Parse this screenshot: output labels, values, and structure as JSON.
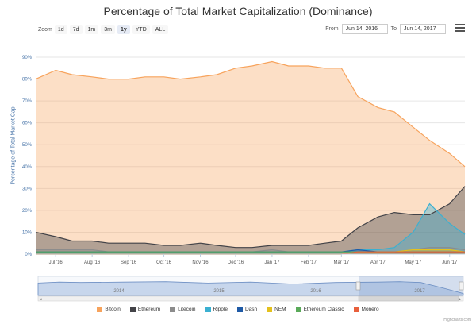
{
  "title": "Percentage of Total Market Capitalization (Dominance)",
  "zoom": {
    "label": "Zoom",
    "buttons": [
      "1d",
      "7d",
      "1m",
      "3m",
      "1y",
      "YTD",
      "ALL"
    ],
    "active": "1y"
  },
  "range": {
    "from_label": "From",
    "from_value": "Jun 14, 2016",
    "to_label": "To",
    "to_value": "Jun 14, 2017"
  },
  "menu_icon": "hamburger-menu-icon",
  "credit": "Highcharts.com",
  "chart_data": {
    "type": "area",
    "title": "Percentage of Total Market Capitalization (Dominance)",
    "ylabel": "Percentage of Total Market Cap",
    "ylim": [
      0,
      90
    ],
    "y_ticks": [
      "0%",
      "10%",
      "20%",
      "30%",
      "40%",
      "50%",
      "60%",
      "70%",
      "80%",
      "90%"
    ],
    "x_ticks": [
      "Jul '16",
      "Aug '16",
      "Sep '16",
      "Oct '16",
      "Nov '16",
      "Dec '16",
      "Jan '17",
      "Feb '17",
      "Mar '17",
      "Apr '17",
      "May '17",
      "Jun '17"
    ],
    "x": [
      "2016-06-14",
      "2016-07-01",
      "2016-07-15",
      "2016-08-01",
      "2016-08-15",
      "2016-09-01",
      "2016-09-15",
      "2016-10-01",
      "2016-10-15",
      "2016-11-01",
      "2016-11-15",
      "2016-12-01",
      "2016-12-15",
      "2017-01-01",
      "2017-01-15",
      "2017-02-01",
      "2017-02-15",
      "2017-03-01",
      "2017-03-15",
      "2017-04-01",
      "2017-04-15",
      "2017-05-01",
      "2017-05-15",
      "2017-06-01",
      "2017-06-14"
    ],
    "series": [
      {
        "name": "Bitcoin",
        "color": "#f7a35c",
        "values": [
          80,
          84,
          82,
          81,
          80,
          80,
          81,
          81,
          80,
          81,
          82,
          85,
          86,
          88,
          86,
          86,
          85,
          85,
          72,
          67,
          65,
          58,
          52,
          46,
          40
        ]
      },
      {
        "name": "Ethereum",
        "color": "#434348",
        "values": [
          10,
          8,
          6,
          6,
          5,
          5,
          5,
          4,
          4,
          5,
          4,
          3,
          3,
          4,
          4,
          4,
          5,
          6,
          12,
          17,
          19,
          18,
          18,
          23,
          31
        ]
      },
      {
        "name": "Litecoin",
        "color": "#8c8c8c",
        "values": [
          2,
          2,
          2,
          2,
          1,
          1,
          1,
          1,
          1,
          1,
          1,
          1,
          1,
          2,
          1,
          1,
          1,
          1,
          1,
          1,
          1,
          2,
          3,
          3,
          2
        ]
      },
      {
        "name": "Ripple",
        "color": "#3bb0d1",
        "values": [
          1,
          1,
          1,
          1,
          1,
          1,
          1,
          1,
          1,
          1,
          1,
          1,
          1,
          1,
          1,
          1,
          1,
          1,
          2,
          2,
          3,
          10,
          23,
          14,
          9
        ]
      },
      {
        "name": "Dash",
        "color": "#1f5aa6",
        "values": [
          1,
          1,
          1,
          1,
          1,
          1,
          1,
          1,
          1,
          1,
          1,
          1,
          1,
          1,
          1,
          1,
          1,
          1,
          2,
          1,
          1,
          1,
          1,
          1,
          1
        ]
      },
      {
        "name": "NEM",
        "color": "#e4c11d",
        "values": [
          0,
          0,
          0,
          0,
          0,
          0,
          0,
          0,
          0,
          0,
          0,
          0,
          0,
          0,
          0,
          0,
          0,
          0,
          1,
          1,
          1,
          2,
          2,
          2,
          1
        ]
      },
      {
        "name": "Ethereum Classic",
        "color": "#5aaa59",
        "values": [
          1,
          1,
          1,
          1,
          1,
          1,
          1,
          1,
          1,
          1,
          1,
          1,
          1,
          1,
          1,
          1,
          1,
          1,
          1,
          1,
          1,
          1,
          1,
          1,
          1
        ]
      },
      {
        "name": "Monero",
        "color": "#e8603c",
        "values": [
          0,
          0,
          0,
          0,
          0,
          0,
          0,
          0,
          0,
          0,
          0,
          0,
          0,
          0,
          0,
          0,
          0,
          0,
          1,
          1,
          1,
          1,
          1,
          1,
          1
        ]
      }
    ],
    "navigator": {
      "labels": [
        "2014",
        "2015",
        "2016",
        "2017"
      ]
    },
    "legend": "bottom",
    "grid": true
  }
}
